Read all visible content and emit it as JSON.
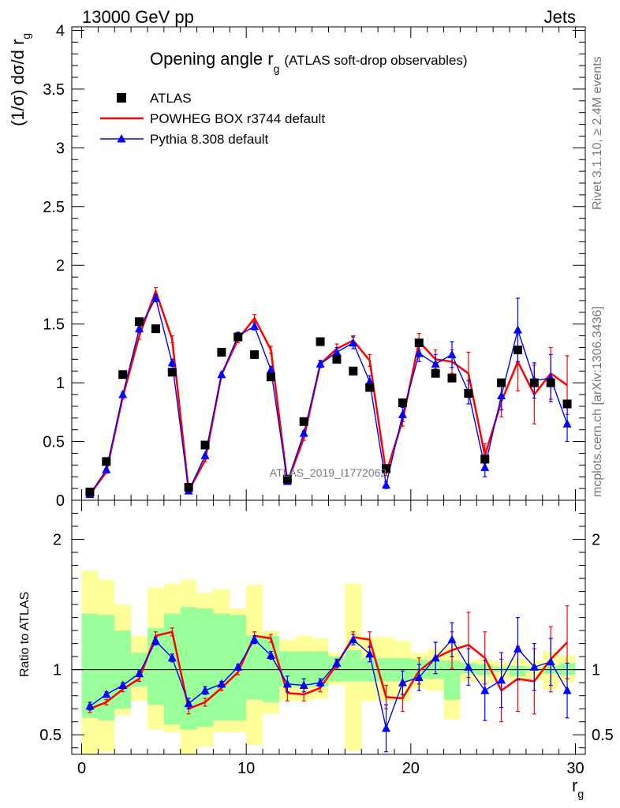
{
  "header": {
    "left": "13000 GeV pp",
    "right": "Jets"
  },
  "side_labels": {
    "rivet": "Rivet 3.1.10, ≥ 2.4M events",
    "mcplots": "mcplots.cern.ch [arXiv:1306.3436]"
  },
  "chart_data": {
    "type": "line",
    "title_main": "Opening angle r",
    "title_sub": "g",
    "title_rest": "(ATLAS soft-drop observables)",
    "watermark": "ATLAS_2019_I1772062",
    "x": [
      0.5,
      1.5,
      2.5,
      3.5,
      4.5,
      5.5,
      6.5,
      7.5,
      8.5,
      9.5,
      10.5,
      11.5,
      12.5,
      13.5,
      14.5,
      15.5,
      16.5,
      17.5,
      18.5,
      19.5,
      20.5,
      21.5,
      22.5,
      23.5,
      24.5,
      25.5,
      26.5,
      27.5,
      28.5,
      29.5
    ],
    "xlim": [
      -0.6,
      30.6
    ],
    "xticks": [
      0,
      10,
      20,
      30
    ],
    "xlabel": "r",
    "xlabel_sub": "g",
    "main": {
      "ylabel": "(1/σ) dσ/d r",
      "ylabel_sub": "g",
      "ylim": [
        0,
        4.03
      ],
      "yticks": [
        "0",
        "0.5",
        "1",
        "1.5",
        "2",
        "2.5",
        "3",
        "3.5",
        "4"
      ],
      "series": [
        {
          "name": "ATLAS",
          "color": "#000000",
          "values": [
            0.07,
            0.33,
            1.07,
            1.52,
            1.46,
            1.09,
            0.11,
            0.47,
            1.26,
            1.39,
            1.24,
            1.05,
            0.18,
            0.67,
            1.35,
            1.2,
            1.1,
            0.96,
            0.27,
            0.83,
            1.34,
            1.08,
            1.04,
            0.91,
            0.35,
            1.0,
            1.28,
            1.0,
            1.0,
            0.82
          ]
        },
        {
          "name": "POWHEG BOX r3744 default",
          "color": "#ff0000",
          "values": [
            0.05,
            0.24,
            0.88,
            1.4,
            1.78,
            1.37,
            0.08,
            0.34,
            1.07,
            1.37,
            1.55,
            1.28,
            0.15,
            0.53,
            1.16,
            1.29,
            1.36,
            1.19,
            0.23,
            0.68,
            1.35,
            1.2,
            1.18,
            1.08,
            0.38,
            0.84,
            1.18,
            0.9,
            1.08,
            0.98
          ],
          "errors": [
            0.01,
            0.01,
            0.02,
            0.03,
            0.03,
            0.03,
            0.01,
            0.01,
            0.02,
            0.03,
            0.03,
            0.03,
            0.01,
            0.02,
            0.03,
            0.04,
            0.04,
            0.05,
            0.02,
            0.05,
            0.07,
            0.08,
            0.1,
            0.18,
            0.1,
            0.13,
            0.25,
            0.25,
            0.22,
            0.25
          ]
        },
        {
          "name": "Pythia 8.308 default",
          "color": "#0000ff",
          "values": [
            0.05,
            0.26,
            0.9,
            1.46,
            1.72,
            1.17,
            0.08,
            0.38,
            1.07,
            1.4,
            1.48,
            1.11,
            0.16,
            0.57,
            1.16,
            1.26,
            1.34,
            1.01,
            0.13,
            0.73,
            1.25,
            1.16,
            1.24,
            0.92,
            0.28,
            0.89,
            1.45,
            1.02,
            1.04,
            0.65
          ],
          "errors": [
            0.01,
            0.01,
            0.02,
            0.03,
            0.03,
            0.03,
            0.01,
            0.01,
            0.02,
            0.03,
            0.03,
            0.03,
            0.01,
            0.02,
            0.03,
            0.04,
            0.05,
            0.05,
            0.03,
            0.06,
            0.07,
            0.08,
            0.11,
            0.1,
            0.08,
            0.12,
            0.27,
            0.15,
            0.2,
            0.15
          ]
        }
      ]
    },
    "ratio": {
      "ylabel": "Ratio to ATLAS",
      "ylim": [
        0.35,
        2.3
      ],
      "yticks": [
        "0.5",
        "1",
        "2"
      ],
      "band_inner": {
        "color": "#99ff99",
        "upper": [
          1.43,
          1.42,
          1.3,
          1.13,
          1.32,
          1.43,
          1.48,
          1.47,
          1.43,
          1.42,
          1.26,
          1.26,
          1.14,
          1.14,
          1.14,
          1.1,
          1.15,
          1.09,
          1.09,
          1.09,
          1.08,
          1.07,
          1.07,
          1.05,
          1.04,
          1.02,
          1.03,
          1.02,
          1.03,
          1.05
        ],
        "lower": [
          0.63,
          0.61,
          0.7,
          0.87,
          0.73,
          0.58,
          0.54,
          0.56,
          0.61,
          0.61,
          0.77,
          0.75,
          0.87,
          0.87,
          0.87,
          0.91,
          0.91,
          0.91,
          0.91,
          0.91,
          0.93,
          0.93,
          0.77,
          0.97,
          0.96,
          0.98,
          0.95,
          0.99,
          0.97,
          0.96
        ]
      },
      "band_outer": {
        "color": "#ffff99",
        "upper": [
          1.76,
          1.69,
          1.5,
          1.26,
          1.63,
          1.66,
          1.69,
          1.59,
          1.62,
          1.47,
          1.65,
          1.3,
          1.23,
          1.26,
          1.24,
          1.13,
          1.66,
          1.25,
          1.25,
          1.22,
          1.13,
          1.16,
          1.2,
          1.07,
          1.08,
          1.06,
          1.09,
          1.07,
          1.14,
          1.11
        ],
        "lower": [
          0.33,
          0.37,
          0.65,
          0.76,
          0.54,
          0.52,
          0.32,
          0.41,
          0.52,
          0.52,
          0.42,
          0.66,
          0.76,
          0.76,
          0.78,
          0.88,
          0.38,
          0.76,
          0.76,
          0.76,
          0.85,
          0.84,
          0.62,
          0.91,
          0.9,
          0.93,
          0.91,
          0.92,
          0.85,
          0.9
        ]
      },
      "series": [
        {
          "name": "POWHEG BOX r3744 default",
          "color": "#ff0000",
          "values": [
            0.7,
            0.75,
            0.85,
            0.93,
            1.26,
            1.29,
            0.7,
            0.75,
            0.86,
            0.98,
            1.26,
            1.24,
            0.82,
            0.81,
            0.86,
            1.04,
            1.25,
            1.23,
            0.79,
            0.78,
            0.99,
            1.09,
            1.15,
            1.19,
            1.09,
            0.84,
            0.93,
            0.91,
            1.08,
            1.21
          ],
          "errors": [
            0.03,
            0.02,
            0.02,
            0.02,
            0.03,
            0.03,
            0.04,
            0.03,
            0.02,
            0.02,
            0.03,
            0.03,
            0.06,
            0.05,
            0.03,
            0.03,
            0.04,
            0.06,
            0.09,
            0.1,
            0.1,
            0.12,
            0.14,
            0.25,
            0.2,
            0.24,
            0.25,
            0.25,
            0.25,
            0.28
          ]
        },
        {
          "name": "Pythia 8.308 default",
          "color": "#0000ff",
          "values": [
            0.72,
            0.81,
            0.88,
            0.97,
            1.22,
            1.09,
            0.74,
            0.84,
            0.89,
            1.02,
            1.23,
            1.11,
            0.89,
            0.88,
            0.9,
            1.05,
            1.23,
            1.12,
            0.55,
            0.9,
            0.94,
            1.09,
            1.23,
            1.02,
            0.84,
            0.92,
            1.16,
            1.02,
            1.06,
            0.84
          ],
          "errors": [
            0.03,
            0.02,
            0.02,
            0.02,
            0.03,
            0.03,
            0.04,
            0.03,
            0.02,
            0.02,
            0.03,
            0.03,
            0.06,
            0.05,
            0.03,
            0.03,
            0.04,
            0.06,
            0.18,
            0.09,
            0.1,
            0.12,
            0.13,
            0.14,
            0.23,
            0.21,
            0.24,
            0.18,
            0.18,
            0.21
          ]
        }
      ]
    }
  }
}
